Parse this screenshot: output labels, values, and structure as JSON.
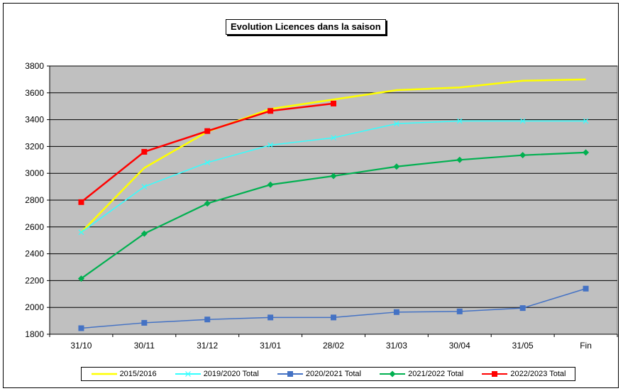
{
  "chart_data": {
    "type": "line",
    "title": "Evolution Licences dans la saison",
    "xlabel": "",
    "ylabel": "",
    "categories": [
      "31/10",
      "30/11",
      "31/12",
      "31/01",
      "28/02",
      "31/03",
      "30/04",
      "31/05",
      "Fin"
    ],
    "ylim": [
      1800,
      3800
    ],
    "yticks": [
      1800,
      2000,
      2200,
      2400,
      2600,
      2800,
      3000,
      3200,
      3400,
      3600,
      3800
    ],
    "grid": true,
    "legend_position": "bottom",
    "plot_background": "#c0c0c0",
    "series": [
      {
        "name": "2015/2016",
        "color": "#ffff00",
        "marker": "none",
        "values": [
          2560,
          3040,
          3310,
          3480,
          3550,
          3620,
          3640,
          3690,
          3700
        ]
      },
      {
        "name": "2019/2020 Total",
        "color": "#33ffff",
        "marker": "x",
        "values": [
          2560,
          2900,
          3080,
          3210,
          3265,
          3370,
          3390,
          3390,
          3390
        ]
      },
      {
        "name": "2020/2021 Total",
        "color": "#4472c4",
        "marker": "square",
        "values": [
          1845,
          1885,
          1910,
          1925,
          1925,
          1965,
          1970,
          1995,
          2140
        ]
      },
      {
        "name": "2021/2022 Total",
        "color": "#00b050",
        "marker": "diamond",
        "values": [
          2215,
          2550,
          2775,
          2915,
          2980,
          3050,
          3100,
          3135,
          3155
        ]
      },
      {
        "name": "2022/2023 Total",
        "color": "#ff0000",
        "marker": "square",
        "values": [
          2785,
          3160,
          3315,
          3465,
          3520,
          null,
          null,
          null,
          null
        ]
      }
    ]
  }
}
